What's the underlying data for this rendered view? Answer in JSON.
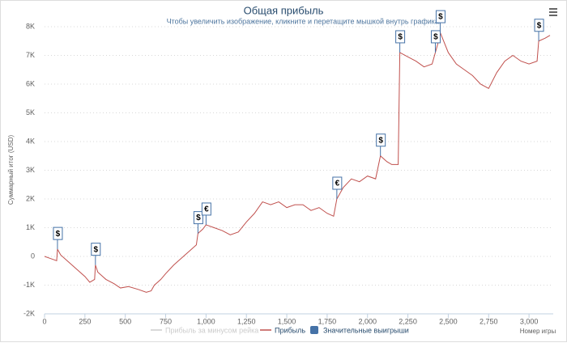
{
  "chart_data": {
    "type": "line",
    "title": "Общая прибыль",
    "subtitle": "Чтобы увеличить изображение, кликните и перетащите мышкой внутрь графика.",
    "y_label": "Суммарный итог (USD)",
    "x_label": "Номер игры",
    "xlim": [
      0,
      3150
    ],
    "xticks": [
      0,
      250,
      500,
      750,
      {
        "value": 1000,
        "label": "1,000"
      },
      {
        "value": 1250,
        "label": "1,250"
      },
      {
        "value": 1500,
        "label": "1,500"
      },
      {
        "value": 1750,
        "label": "1,750"
      },
      {
        "value": 2000,
        "label": "2,000"
      },
      {
        "value": 2250,
        "label": "2,250"
      },
      {
        "value": 2500,
        "label": "2,500"
      },
      {
        "value": 2750,
        "label": "2,750"
      },
      {
        "value": 3000,
        "label": "3,000"
      }
    ],
    "ylim": [
      -2000,
      8000
    ],
    "yticks": [
      {
        "value": -2000,
        "label": "-2K"
      },
      {
        "value": -1000,
        "label": "-1K"
      },
      0,
      {
        "value": 1000,
        "label": "1K"
      },
      {
        "value": 2000,
        "label": "2K"
      },
      {
        "value": 3000,
        "label": "3K"
      },
      {
        "value": 4000,
        "label": "4K"
      },
      {
        "value": 5000,
        "label": "5K"
      },
      {
        "value": 6000,
        "label": "6K"
      },
      {
        "value": 7000,
        "label": "7K"
      },
      {
        "value": 8000,
        "label": "8K"
      }
    ],
    "grid": true,
    "legend": "bottom",
    "series": [
      {
        "name": "Прибыль за минусом рейка",
        "color": "#cccccc"
      },
      {
        "name": "Прибыль",
        "color": "#c0504d",
        "x": [
          0,
          40,
          75,
          80,
          100,
          150,
          200,
          250,
          280,
          310,
          315,
          330,
          380,
          430,
          470,
          520,
          580,
          630,
          660,
          680,
          700,
          720,
          750,
          800,
          850,
          900,
          940,
          950,
          980,
          1000,
          1050,
          1100,
          1150,
          1200,
          1250,
          1300,
          1350,
          1400,
          1450,
          1500,
          1550,
          1600,
          1650,
          1700,
          1750,
          1790,
          1810,
          1850,
          1900,
          1950,
          2000,
          2050,
          2080,
          2120,
          2150,
          2190,
          2200,
          2250,
          2300,
          2350,
          2400,
          2420,
          2440,
          2450,
          2500,
          2550,
          2600,
          2650,
          2700,
          2750,
          2800,
          2850,
          2900,
          2950,
          3000,
          3050,
          3060,
          3100,
          3130
        ],
        "values": [
          0,
          -80,
          -150,
          250,
          50,
          -200,
          -450,
          -700,
          -900,
          -800,
          -300,
          -550,
          -800,
          -950,
          -1100,
          -1050,
          -1150,
          -1250,
          -1200,
          -1000,
          -900,
          -800,
          -600,
          -300,
          -50,
          200,
          400,
          800,
          950,
          1100,
          1000,
          900,
          750,
          850,
          1200,
          1500,
          1900,
          1800,
          1900,
          1700,
          1800,
          1800,
          1600,
          1700,
          1500,
          1400,
          2000,
          2400,
          2700,
          2600,
          2800,
          2700,
          3500,
          3300,
          3200,
          3200,
          7100,
          6950,
          6800,
          6600,
          6700,
          7100,
          7500,
          7800,
          7100,
          6700,
          6500,
          6300,
          6000,
          5850,
          6400,
          6800,
          7000,
          6800,
          6700,
          6800,
          7500,
          7600,
          7700
        ]
      },
      {
        "name": "Значительные выигрыши",
        "type": "flags",
        "color": "#4572a7",
        "x": [
          80,
          315,
          950,
          1000,
          1810,
          2080,
          2200,
          2420,
          2450,
          3060
        ],
        "values": [
          250,
          -300,
          800,
          1100,
          2000,
          3500,
          7100,
          7100,
          7800,
          7500
        ],
        "labels": [
          "$",
          "$",
          "$",
          "€",
          "€",
          "$",
          "$",
          "$",
          "$",
          "$"
        ]
      }
    ]
  }
}
